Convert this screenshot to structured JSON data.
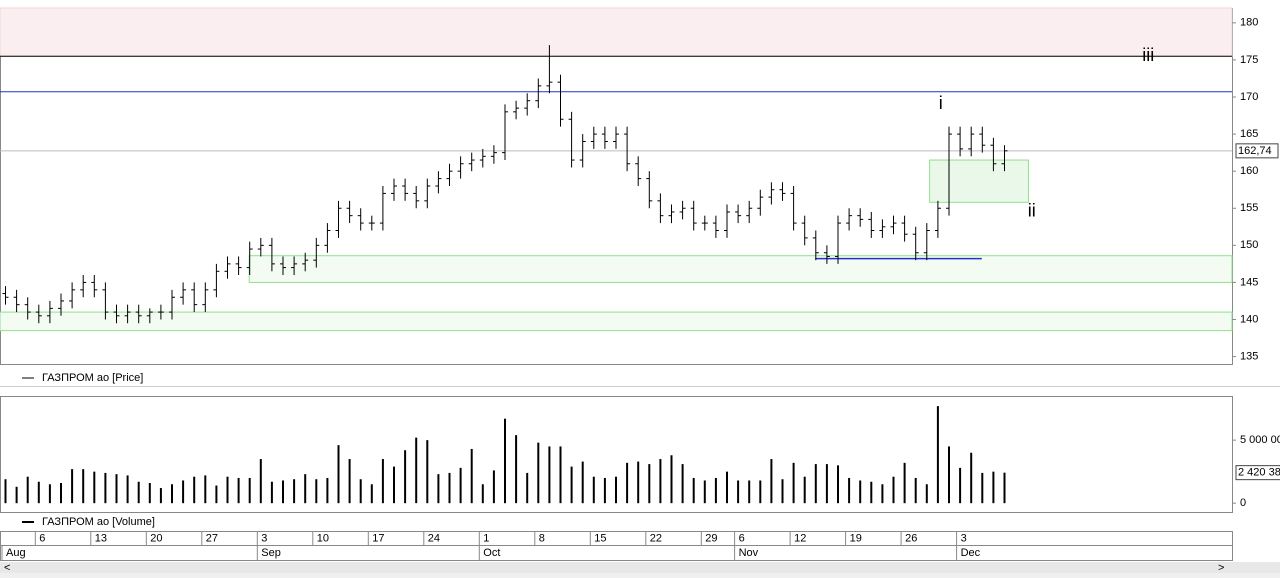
{
  "chart_data": [
    {
      "type": "ohlc",
      "legend": "ГАЗПРОМ ао [Price]",
      "color": "#000000",
      "ylim": [
        134,
        182
      ],
      "yticks": [
        135,
        140,
        145,
        150,
        155,
        160,
        165,
        170,
        175,
        180
      ],
      "open": [
        143.5,
        143,
        142,
        141,
        140.5,
        141.5,
        142.5,
        144,
        145,
        144,
        141,
        140.5,
        141,
        140.5,
        141,
        141,
        143,
        144,
        142,
        144,
        146.5,
        147.5,
        147,
        149.5,
        150,
        147.5,
        147,
        147.5,
        148,
        150,
        152,
        155,
        154,
        153,
        153,
        157,
        158,
        157,
        156,
        158,
        159,
        160,
        161,
        161.5,
        162,
        162.5,
        168,
        168.5,
        169.5,
        171.5,
        172,
        167,
        161.5,
        164,
        165,
        164,
        165,
        161,
        159,
        156,
        154,
        154.5,
        155,
        153,
        153,
        152,
        154.5,
        154,
        155,
        156.5,
        157.5,
        157,
        153,
        151,
        149,
        148.5,
        153,
        154,
        153.5,
        152,
        152.5,
        153,
        151.5,
        149,
        152,
        155,
        165,
        163,
        165,
        163.5,
        161
      ],
      "high": [
        144.5,
        144,
        143,
        142,
        142.5,
        143.5,
        145,
        146,
        146,
        145,
        142,
        142,
        142,
        141.5,
        142,
        144,
        145,
        145,
        145,
        147.5,
        148.5,
        148.5,
        150.5,
        151,
        151,
        148.5,
        148.5,
        149,
        151,
        153,
        156,
        156,
        155,
        154,
        158,
        159,
        159,
        158,
        159,
        160,
        161,
        162,
        162.5,
        163,
        163.5,
        169,
        169.5,
        170.5,
        172.5,
        177,
        173,
        168,
        165,
        166,
        166,
        166,
        166,
        162,
        160,
        157,
        155.5,
        156,
        156,
        154,
        154,
        155.5,
        155.5,
        156,
        157.5,
        158.5,
        158.5,
        158,
        154,
        152,
        150,
        154,
        155,
        155,
        154.5,
        153.5,
        154,
        154,
        152.5,
        153,
        156,
        166,
        166,
        166,
        166,
        164.5,
        163.5
      ],
      "low": [
        142,
        141,
        140,
        139.5,
        139.5,
        140.5,
        141.5,
        143,
        143,
        140,
        139.5,
        139.5,
        139.5,
        139.5,
        140,
        140,
        142,
        141,
        141,
        143,
        145.5,
        146,
        146,
        148.5,
        146.5,
        146,
        146,
        146.5,
        147,
        149,
        151,
        153,
        152,
        152,
        152,
        156,
        156,
        155,
        155,
        157,
        158,
        159,
        160,
        160.5,
        161,
        161.5,
        167,
        167.5,
        168.5,
        170.5,
        166,
        160.5,
        160.5,
        163,
        163,
        163,
        160,
        158,
        155,
        153,
        153,
        153.5,
        152,
        152,
        151,
        151,
        153,
        153,
        154,
        155.5,
        156,
        152,
        150,
        148,
        147.5,
        147.5,
        152,
        152.5,
        151,
        151,
        151.5,
        150.5,
        148,
        148,
        151,
        154,
        162,
        162,
        162.5,
        160,
        160
      ],
      "close": [
        143,
        142,
        141,
        140.5,
        141.5,
        142.5,
        144,
        145,
        144,
        141,
        140.5,
        141,
        140.5,
        141,
        141,
        143,
        144,
        142,
        144,
        146.5,
        147.5,
        147,
        149.5,
        150,
        147.5,
        147,
        147.5,
        148,
        150,
        152,
        155,
        154,
        153,
        153,
        157,
        158,
        157,
        156,
        158,
        159,
        160,
        161,
        161.5,
        162,
        162.5,
        168,
        168.5,
        169.5,
        171.5,
        172,
        167,
        161.5,
        164,
        165,
        164,
        165,
        161,
        159,
        156,
        154,
        154.5,
        155,
        153,
        153,
        152,
        154.5,
        154,
        155,
        156.5,
        157.5,
        157,
        153,
        151,
        149,
        148.5,
        153,
        154,
        153.5,
        152,
        152.5,
        153,
        151.5,
        149,
        152,
        155,
        165,
        163,
        165,
        163.5,
        161,
        162.74
      ],
      "last_price": {
        "value": 162.74,
        "label": "162,74",
        "color": "#bbbbbb"
      },
      "zones": [
        {
          "from": 175.5,
          "to": 182,
          "fill": "#fbeef0",
          "stroke": "#f2d6da"
        },
        {
          "from": 145,
          "to": 148.6,
          "start": 22,
          "fill": "#f3fbf3",
          "stroke": "#8fe08f"
        },
        {
          "from": 138.5,
          "to": 141,
          "fill": "#f3fbf3",
          "stroke": "#8fe08f"
        },
        {
          "from": 155.8,
          "to": 161.5,
          "start": 83.3,
          "end": 92.2,
          "fill": "#eaf8ea",
          "stroke": "#8fe08f"
        }
      ],
      "lines": [
        {
          "value": 175.5,
          "color": "#000000"
        },
        {
          "value": 170.7,
          "color": "#2233cc"
        },
        {
          "value": 148.2,
          "color": "#2233cc",
          "start": 73,
          "end": 88
        }
      ],
      "annotations": [
        {
          "text": "iii",
          "x": 103,
          "y": 175.5
        },
        {
          "text": "i",
          "x": 84.3,
          "y": 169
        },
        {
          "text": "ii",
          "x": 92.5,
          "y": 154.5
        }
      ]
    },
    {
      "type": "volume",
      "legend": "ГАЗПРОМ ао [Volume]",
      "color": "#000000",
      "ylim": [
        -700000,
        8500000
      ],
      "yticks": [
        {
          "value": 0,
          "label": "0"
        },
        {
          "value": 5000000,
          "label": "5 000 00"
        }
      ],
      "values": [
        1900000,
        1300000,
        2100000,
        1700000,
        1500000,
        1600000,
        2700000,
        2700000,
        2500000,
        2400000,
        2300000,
        2200000,
        1700000,
        1600000,
        1200000,
        1500000,
        1800000,
        2100000,
        2200000,
        1400000,
        2100000,
        2000000,
        2000000,
        3500000,
        1700000,
        1800000,
        1900000,
        2300000,
        1900000,
        2000000,
        4600000,
        3500000,
        1900000,
        1500000,
        3500000,
        2900000,
        4200000,
        5200000,
        5000000,
        2300000,
        2400000,
        2800000,
        4300000,
        1500000,
        2600000,
        6700000,
        5400000,
        2400000,
        4800000,
        4500000,
        4500000,
        2900000,
        3300000,
        2100000,
        2000000,
        2100000,
        3200000,
        3300000,
        3100000,
        3500000,
        3800000,
        3100000,
        2000000,
        1800000,
        2000000,
        2500000,
        1800000,
        1800000,
        1800000,
        3500000,
        1900000,
        3200000,
        2100000,
        3100000,
        3100000,
        3000000,
        2000000,
        1800000,
        1700000,
        1500000,
        2100000,
        3200000,
        2000000,
        1500000,
        7700000,
        4500000,
        2800000,
        4000000,
        2400000,
        2500000,
        2420380
      ],
      "last_value": {
        "value": 2420380,
        "label": "2 420 38"
      },
      "xticks": [
        {
          "value": 3,
          "label": "6"
        },
        {
          "value": 8,
          "label": "13"
        },
        {
          "value": 13,
          "label": "20"
        },
        {
          "value": 18,
          "label": "27"
        },
        {
          "value": 23,
          "label": "3"
        },
        {
          "value": 28,
          "label": "10"
        },
        {
          "value": 33,
          "label": "17"
        },
        {
          "value": 38,
          "label": "24"
        },
        {
          "value": 43,
          "label": "1"
        },
        {
          "value": 48,
          "label": "8"
        },
        {
          "value": 53,
          "label": "15"
        },
        {
          "value": 58,
          "label": "22"
        },
        {
          "value": 63,
          "label": "29"
        },
        {
          "value": 66,
          "label": "6"
        },
        {
          "value": 71,
          "label": "12"
        },
        {
          "value": 76,
          "label": "19"
        },
        {
          "value": 81,
          "label": "26"
        },
        {
          "value": 86,
          "label": "3"
        }
      ],
      "months": [
        {
          "value": 0,
          "label": "Aug"
        },
        {
          "value": 23,
          "label": "Sep"
        },
        {
          "value": 43,
          "label": "Oct"
        },
        {
          "value": 66,
          "label": "Nov"
        },
        {
          "value": 86,
          "label": "Dec"
        }
      ]
    }
  ]
}
